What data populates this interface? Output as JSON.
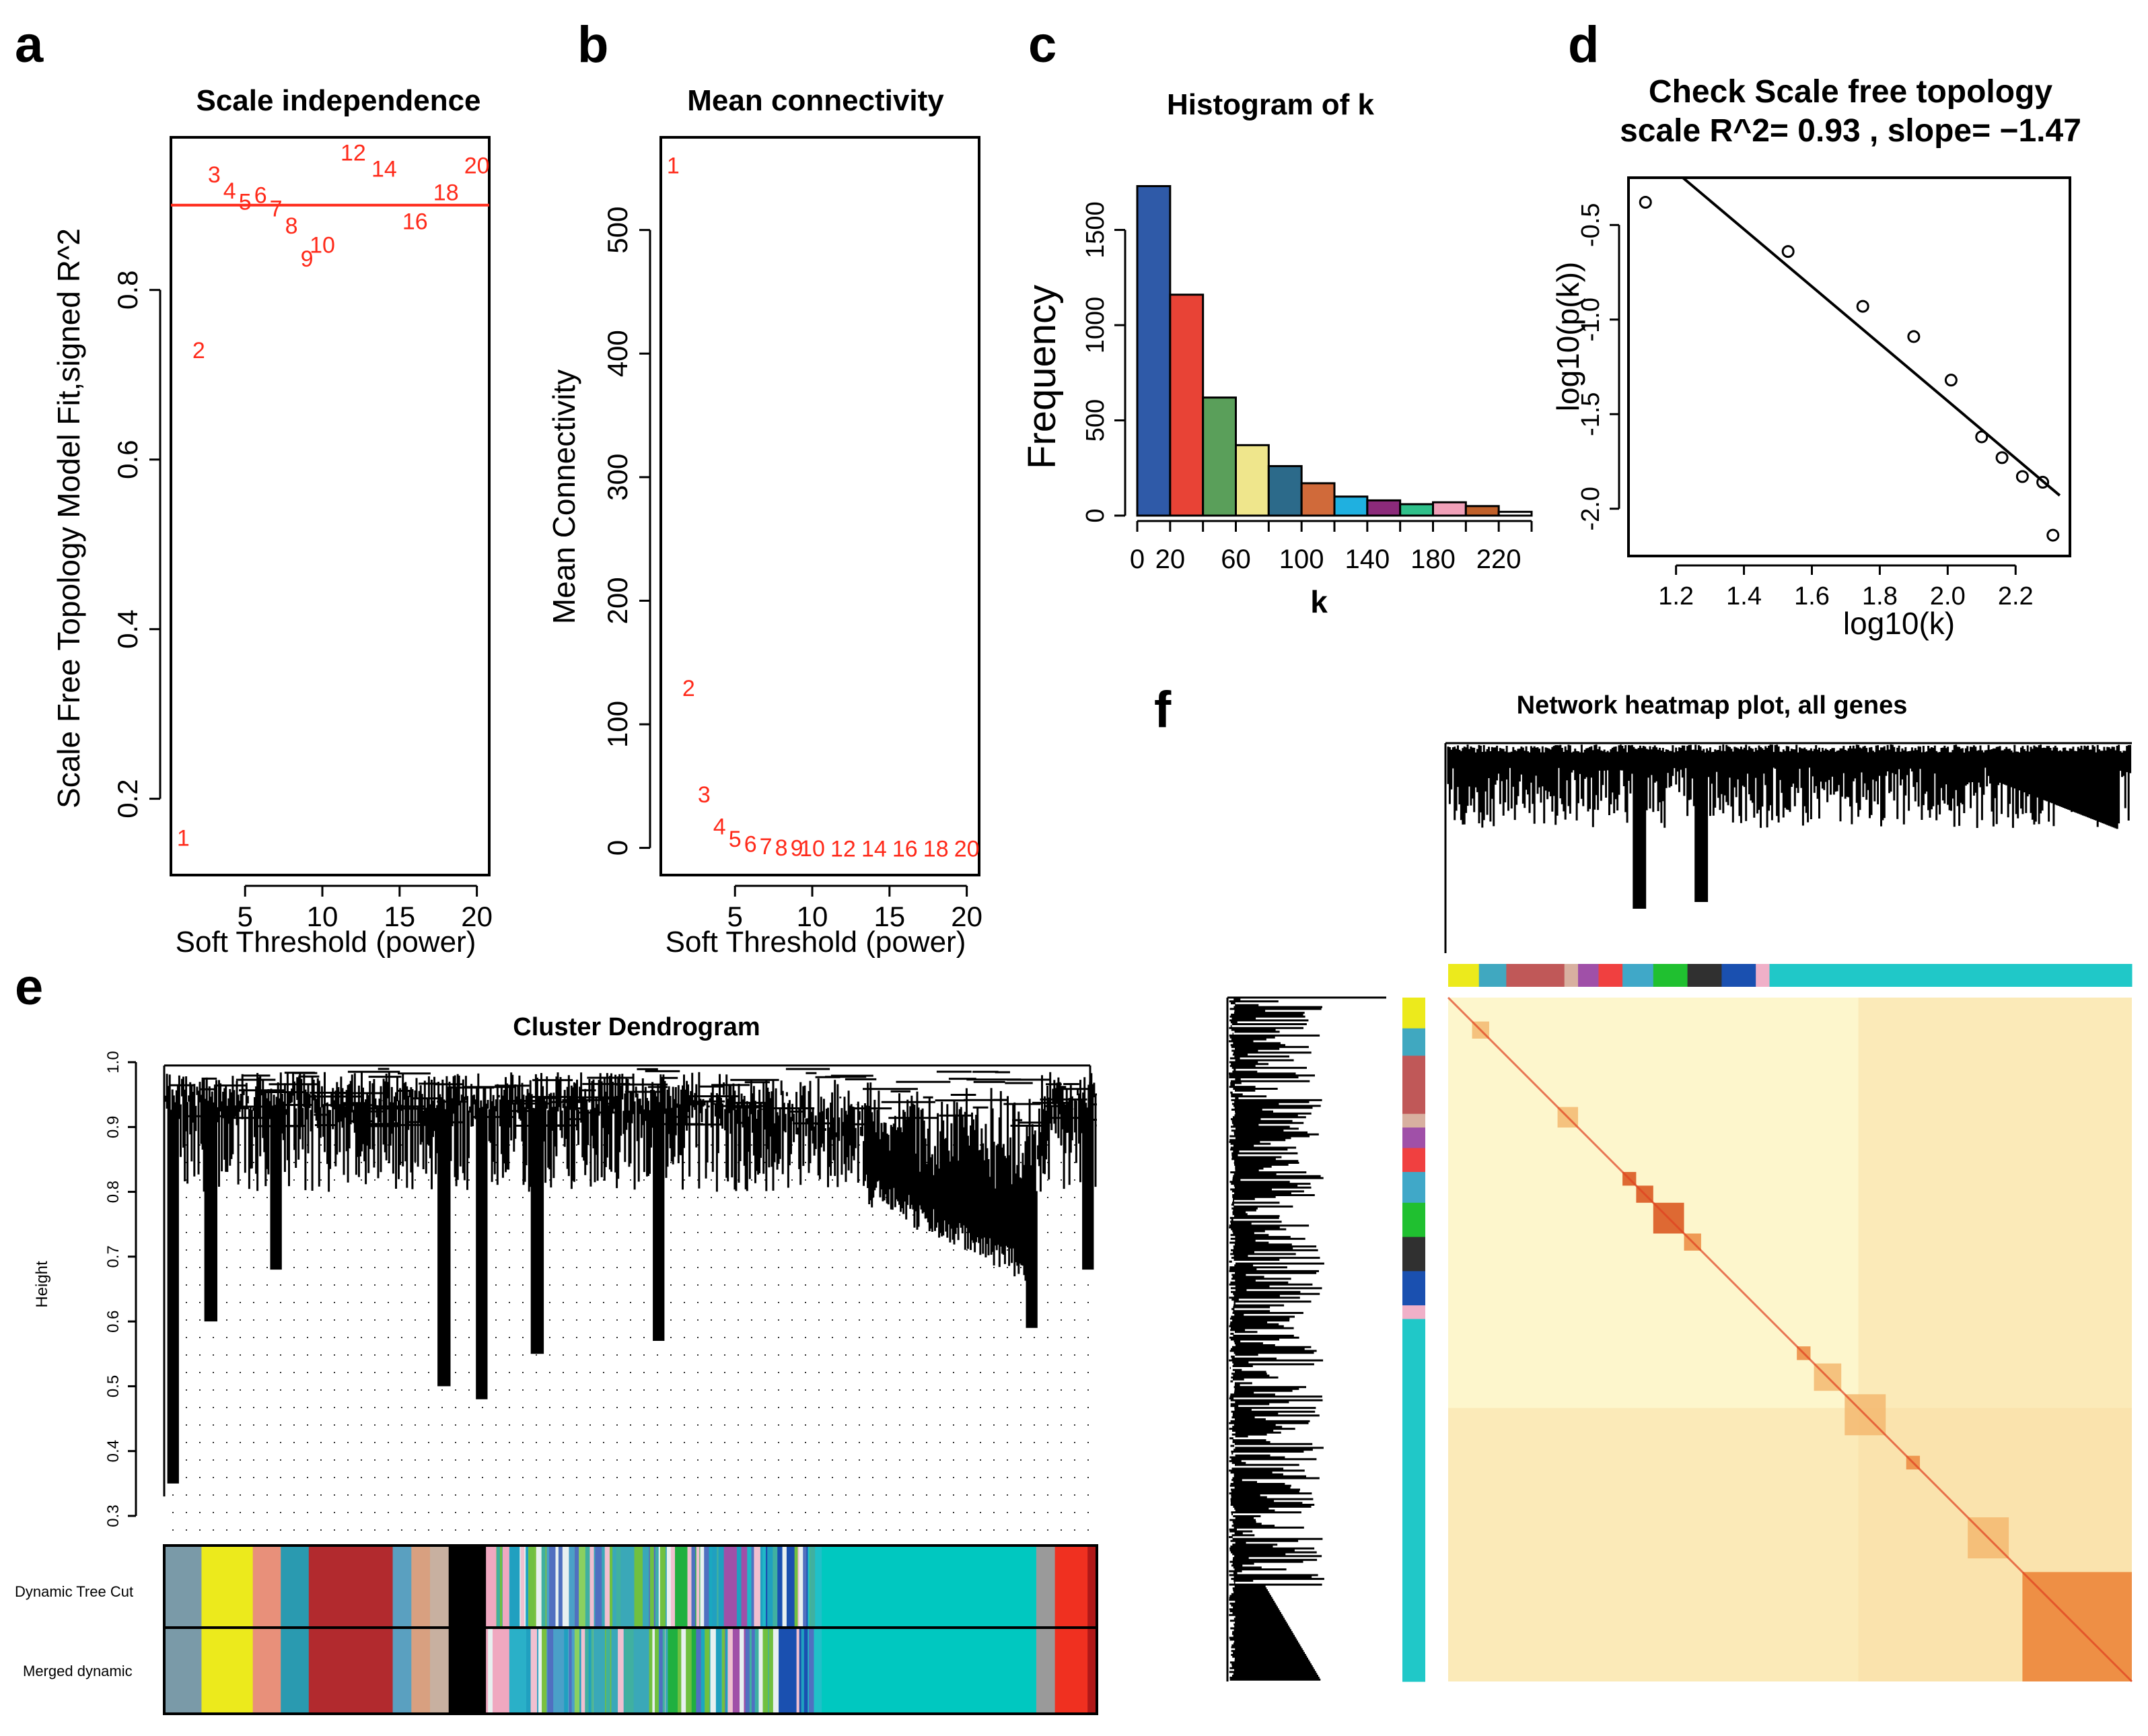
{
  "panel_labels": [
    "a",
    "b",
    "c",
    "d",
    "e",
    "f"
  ],
  "chart_data": [
    {
      "id": "a",
      "type": "scatter",
      "title": "Scale independence",
      "xlabel": "Soft Threshold (power)",
      "ylabel": "Scale Free Topology Model Fit,signed R^2",
      "xlim": [
        0.2,
        20.8
      ],
      "ylim": [
        0.11,
        0.98
      ],
      "xticks": [
        "5",
        "10",
        "15",
        "20"
      ],
      "xtick_values": [
        5,
        10,
        15,
        20
      ],
      "yticks": [
        "0.2",
        "0.4",
        "0.6",
        "0.8"
      ],
      "ytick_values": [
        0.2,
        0.4,
        0.6,
        0.8
      ],
      "hline": 0.9,
      "points": [
        {
          "x": 1,
          "y": 0.155,
          "label": "1"
        },
        {
          "x": 2,
          "y": 0.73,
          "label": "2"
        },
        {
          "x": 3,
          "y": 0.937,
          "label": "3"
        },
        {
          "x": 4,
          "y": 0.918,
          "label": "4"
        },
        {
          "x": 5,
          "y": 0.905,
          "label": "5"
        },
        {
          "x": 6,
          "y": 0.913,
          "label": "6"
        },
        {
          "x": 7,
          "y": 0.897,
          "label": "7"
        },
        {
          "x": 8,
          "y": 0.877,
          "label": "8"
        },
        {
          "x": 9,
          "y": 0.838,
          "label": "9"
        },
        {
          "x": 10,
          "y": 0.854,
          "label": "10"
        },
        {
          "x": 12,
          "y": 0.963,
          "label": "12"
        },
        {
          "x": 14,
          "y": 0.944,
          "label": "14"
        },
        {
          "x": 16,
          "y": 0.882,
          "label": "16"
        },
        {
          "x": 18,
          "y": 0.916,
          "label": "18"
        },
        {
          "x": 20,
          "y": 0.948,
          "label": "20"
        }
      ]
    },
    {
      "id": "b",
      "type": "scatter",
      "title": "Mean connectivity",
      "xlabel": "Soft Threshold (power)",
      "ylabel": "Mean Connectivity",
      "xlim": [
        0.2,
        20.8
      ],
      "ylim": [
        -22,
        575
      ],
      "xticks": [
        "5",
        "10",
        "15",
        "20"
      ],
      "xtick_values": [
        5,
        10,
        15,
        20
      ],
      "yticks": [
        "0",
        "100",
        "200",
        "300",
        "400",
        "500"
      ],
      "ytick_values": [
        0,
        100,
        200,
        300,
        400,
        500
      ],
      "points": [
        {
          "x": 1,
          "y": 553,
          "label": "1"
        },
        {
          "x": 2,
          "y": 130,
          "label": "2"
        },
        {
          "x": 3,
          "y": 44,
          "label": "3"
        },
        {
          "x": 4,
          "y": 18,
          "label": "4"
        },
        {
          "x": 5,
          "y": 8,
          "label": "5"
        },
        {
          "x": 6,
          "y": 4,
          "label": "6"
        },
        {
          "x": 7,
          "y": 2,
          "label": "7"
        },
        {
          "x": 8,
          "y": 1,
          "label": "8"
        },
        {
          "x": 9,
          "y": 0.5,
          "label": "9"
        },
        {
          "x": 10,
          "y": 0.3,
          "label": "10"
        },
        {
          "x": 12,
          "y": 0.1,
          "label": "12"
        },
        {
          "x": 14,
          "y": 0.05,
          "label": "14"
        },
        {
          "x": 16,
          "y": 0.02,
          "label": "16"
        },
        {
          "x": 18,
          "y": 0.01,
          "label": "18"
        },
        {
          "x": 20,
          "y": 0.005,
          "label": "20"
        }
      ]
    },
    {
      "id": "c",
      "type": "bar",
      "title": "Histogram of k",
      "xlabel": "k",
      "ylabel": "Frequency",
      "xlim": [
        0,
        240
      ],
      "ylim": [
        0,
        1760
      ],
      "xticks": [
        "0",
        "20",
        "60",
        "100",
        "140",
        "180",
        "220"
      ],
      "xtick_values": [
        0,
        20,
        60,
        100,
        140,
        180,
        220
      ],
      "yticks": [
        "0",
        "500",
        "1000",
        "1500"
      ],
      "ytick_values": [
        0,
        500,
        1000,
        1500
      ],
      "bin_width": 20,
      "values": [
        1730,
        1160,
        620,
        370,
        260,
        170,
        100,
        80,
        60,
        70,
        50,
        20
      ],
      "colors": [
        "#2f5aa8",
        "#e84336",
        "#5a9f5a",
        "#efe68c",
        "#2c6a8a",
        "#d06a3a",
        "#1fb0e0",
        "#8b2a7a",
        "#2fc08a",
        "#f0a0b8",
        "#c0602a",
        "#ffffff"
      ]
    },
    {
      "id": "d",
      "type": "scatter",
      "title": "Check Scale free topology",
      "subtitle": "scale R^2= 0.93 , slope= −1.47",
      "xlabel": "log10(k)",
      "ylabel": "log10(p(k))",
      "xlim": [
        1.06,
        2.36
      ],
      "ylim": [
        -2.25,
        -0.25
      ],
      "xticks": [
        "1.2",
        "1.4",
        "1.6",
        "1.8",
        "2.0",
        "2.2"
      ],
      "xtick_values": [
        1.2,
        1.4,
        1.6,
        1.8,
        2.0,
        2.2
      ],
      "yticks": [
        "-0.5",
        "-1.0",
        "-1.5",
        "-2.0"
      ],
      "ytick_values": [
        -0.5,
        -1.0,
        -1.5,
        -2.0
      ],
      "points": [
        {
          "x": 1.11,
          "y": -0.38
        },
        {
          "x": 1.53,
          "y": -0.64
        },
        {
          "x": 1.75,
          "y": -0.93
        },
        {
          "x": 1.9,
          "y": -1.09
        },
        {
          "x": 2.01,
          "y": -1.32
        },
        {
          "x": 2.1,
          "y": -1.62
        },
        {
          "x": 2.16,
          "y": -1.73
        },
        {
          "x": 2.22,
          "y": -1.83
        },
        {
          "x": 2.28,
          "y": -1.86
        },
        {
          "x": 2.31,
          "y": -2.14
        }
      ],
      "fit_line": {
        "x1": 1.22,
        "y1": -0.25,
        "x2": 2.33,
        "y2": -1.93
      }
    },
    {
      "id": "e",
      "type": "dendrogram",
      "title": "Cluster Dendrogram",
      "ylabel": "Height",
      "ylim": [
        0.3,
        1.0
      ],
      "yticks": [
        "0.3",
        "0.4",
        "0.5",
        "0.6",
        "0.7",
        "0.8",
        "0.9",
        "1.0"
      ],
      "ytick_values": [
        0.3,
        0.4,
        0.5,
        0.6,
        0.7,
        0.8,
        0.9,
        1.0
      ],
      "row_labels": [
        "Dynamic Tree Cut",
        "Merged dynamic"
      ],
      "module_colors": [
        {
          "start": 0.0,
          "end": 0.04,
          "color": "#7a9aa8"
        },
        {
          "start": 0.04,
          "end": 0.095,
          "color": "#ecea1c"
        },
        {
          "start": 0.095,
          "end": 0.125,
          "color": "#e8907a"
        },
        {
          "start": 0.125,
          "end": 0.155,
          "color": "#2a9ab0"
        },
        {
          "start": 0.155,
          "end": 0.245,
          "color": "#b22a2e"
        },
        {
          "start": 0.245,
          "end": 0.265,
          "color": "#5aa0c0"
        },
        {
          "start": 0.265,
          "end": 0.285,
          "color": "#d8a080"
        },
        {
          "start": 0.285,
          "end": 0.305,
          "color": "#c8b0a0"
        },
        {
          "start": 0.305,
          "end": 0.345,
          "color": "#000000"
        },
        {
          "start": 0.345,
          "end": 0.37,
          "color": "#f0a8c0"
        },
        {
          "start": 0.37,
          "end": 0.39,
          "color": "#2ab0c8"
        },
        {
          "start": 0.39,
          "end": 0.41,
          "color": "#7ac040"
        },
        {
          "start": 0.41,
          "end": 0.44,
          "color": "#4aa0c8"
        },
        {
          "start": 0.44,
          "end": 0.46,
          "color": "#8ad060"
        },
        {
          "start": 0.46,
          "end": 0.54,
          "color": "#3aa8b8"
        },
        {
          "start": 0.54,
          "end": 0.575,
          "color": "#20b040"
        },
        {
          "start": 0.575,
          "end": 0.6,
          "color": "#1aa8c0"
        },
        {
          "start": 0.6,
          "end": 0.625,
          "color": "#a050a8"
        },
        {
          "start": 0.625,
          "end": 0.645,
          "color": "#20b8c8"
        },
        {
          "start": 0.645,
          "end": 0.69,
          "color": "#1a50b0"
        },
        {
          "start": 0.69,
          "end": 0.705,
          "color": "#20c0c8"
        },
        {
          "start": 0.705,
          "end": 0.935,
          "color": "#00c8c0"
        },
        {
          "start": 0.935,
          "end": 0.955,
          "color": "#9a9a9a"
        },
        {
          "start": 0.955,
          "end": 0.99,
          "color": "#f03020"
        },
        {
          "start": 0.99,
          "end": 1.0,
          "color": "#b01818"
        }
      ]
    },
    {
      "id": "f",
      "type": "heatmap",
      "title": "Network heatmap plot, all genes",
      "module_colors": [
        {
          "start": 0.0,
          "end": 0.045,
          "color": "#ecea1c"
        },
        {
          "start": 0.045,
          "end": 0.085,
          "color": "#40a8c0"
        },
        {
          "start": 0.085,
          "end": 0.17,
          "color": "#c05858"
        },
        {
          "start": 0.17,
          "end": 0.19,
          "color": "#d8b0a0"
        },
        {
          "start": 0.19,
          "end": 0.22,
          "color": "#a050a8"
        },
        {
          "start": 0.22,
          "end": 0.255,
          "color": "#f04040"
        },
        {
          "start": 0.255,
          "end": 0.3,
          "color": "#40a8c8"
        },
        {
          "start": 0.3,
          "end": 0.35,
          "color": "#20c030"
        },
        {
          "start": 0.35,
          "end": 0.4,
          "color": "#303030"
        },
        {
          "start": 0.4,
          "end": 0.45,
          "color": "#1a50b0"
        },
        {
          "start": 0.45,
          "end": 0.47,
          "color": "#f0b0c8"
        },
        {
          "start": 0.47,
          "end": 1.0,
          "color": "#20c8c8"
        }
      ],
      "blocks": [
        {
          "start": 0.035,
          "end": 0.06,
          "intensity": 0.35
        },
        {
          "start": 0.16,
          "end": 0.19,
          "intensity": 0.35
        },
        {
          "start": 0.255,
          "end": 0.275,
          "intensity": 0.9
        },
        {
          "start": 0.275,
          "end": 0.3,
          "intensity": 0.8
        },
        {
          "start": 0.3,
          "end": 0.345,
          "intensity": 0.85
        },
        {
          "start": 0.345,
          "end": 0.37,
          "intensity": 0.6
        },
        {
          "start": 0.51,
          "end": 0.53,
          "intensity": 0.55
        },
        {
          "start": 0.535,
          "end": 0.575,
          "intensity": 0.5
        },
        {
          "start": 0.58,
          "end": 0.64,
          "intensity": 0.5
        },
        {
          "start": 0.67,
          "end": 0.69,
          "intensity": 0.6
        },
        {
          "start": 0.76,
          "end": 0.82,
          "intensity": 0.45
        },
        {
          "start": 0.84,
          "end": 1.0,
          "intensity": 0.55
        }
      ]
    }
  ]
}
